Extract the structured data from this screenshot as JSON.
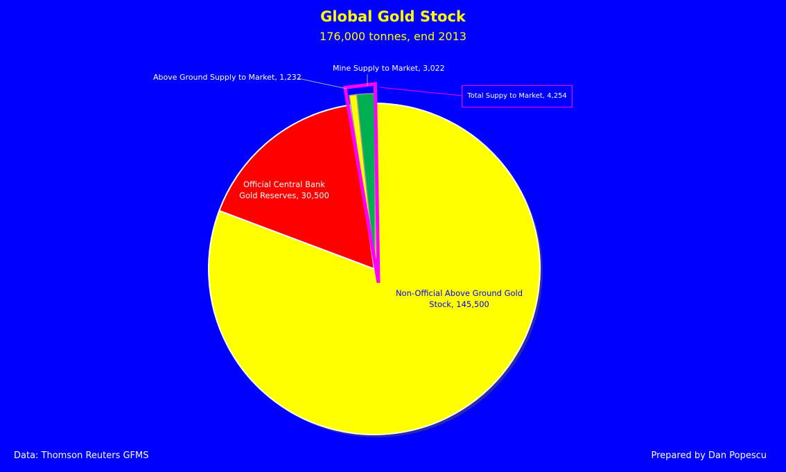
{
  "chart_data": {
    "type": "pie",
    "title": "Global Gold Stock",
    "subtitle": "176,000 tonnes, end 2013",
    "slices": [
      {
        "label": "Non-Official Above Ground Gold Stock, 145,500",
        "name": "Non-Official Above Ground Gold Stock",
        "value": 145500,
        "color": "#ffff00",
        "label_color": "#0000ff"
      },
      {
        "label": "Official Central Bank Gold Reserves, 30,500",
        "name": "Official Central Bank Gold Reserves",
        "value": 30500,
        "color": "#ff0000",
        "label_color": "#ffffff"
      },
      {
        "label": "Above Ground Supply to Market, 1,232",
        "name": "Above Ground Supply to Market",
        "value": 1232,
        "color": "#ffff00",
        "label_color": "#ffffff",
        "exploded": true
      },
      {
        "label": "Mine Supply to Market, 3,022",
        "name": "Mine Supply to Market",
        "value": 3022,
        "color": "#00b050",
        "label_color": "#ffffff",
        "exploded": true
      }
    ],
    "group_callout": {
      "label": "Total Suppy to Market, 4,254",
      "value": 4254,
      "color": "#ff00ff"
    },
    "background": "#0000ff"
  },
  "footer": {
    "source": "Data: Thomson Reuters GFMS",
    "credit": "Prepared by Dan Popescu"
  }
}
